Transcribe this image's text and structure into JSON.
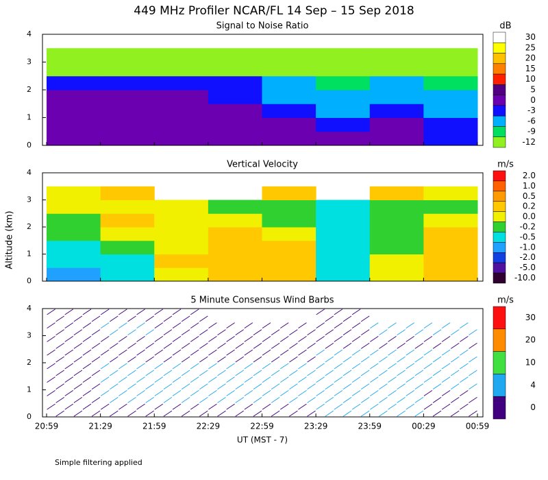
{
  "title": "449 MHz Profiler NCAR/FL 14 Sep – 15 Sep 2018",
  "y_label": "Altitude (km)",
  "note": "Simple filtering applied",
  "x_axis": {
    "label": "UT  (MST - 7)",
    "ticks": [
      "20:59",
      "21:29",
      "21:59",
      "22:29",
      "22:59",
      "23:29",
      "23:59",
      "00:29",
      "00:59"
    ]
  },
  "chart_data": [
    {
      "type": "heatmap",
      "title": "Signal to Noise Ratio",
      "ylim": [
        0,
        4
      ],
      "yticks": [
        0,
        1,
        2,
        3,
        4
      ],
      "y": [
        0.25,
        0.75,
        1.25,
        1.75,
        2.25,
        2.75,
        3.25,
        3.75
      ],
      "z": [
        [
          3,
          3,
          3,
          3,
          1,
          1,
          0,
          -1
        ],
        [
          2,
          2,
          2,
          2,
          0,
          -1,
          0,
          -2
        ],
        [
          2,
          2,
          2,
          1,
          -1,
          -4,
          -2,
          -4
        ],
        [
          1,
          1,
          0,
          -1,
          -4,
          -6,
          -4,
          -5
        ],
        [
          -2,
          -2,
          -3,
          -3,
          -5,
          -7,
          -6,
          -7
        ],
        [
          -10,
          -10,
          -10,
          -10,
          -11,
          -11,
          -11,
          -12
        ],
        [
          -11,
          -11,
          -11,
          -11,
          -11,
          -11,
          -11,
          -11
        ],
        [
          null,
          null,
          null,
          null,
          null,
          null,
          null,
          null
        ]
      ],
      "colorbar": {
        "unit": "dB",
        "levels": [
          30,
          25,
          20,
          15,
          10,
          5,
          0,
          -3,
          -6,
          -9,
          -12
        ],
        "colors": [
          "#ffffff",
          "#ffff00",
          "#ffc000",
          "#ff8000",
          "#ff2000",
          "#500080",
          "#6a00b0",
          "#1010ff",
          "#00b0ff",
          "#00e060",
          "#90f020"
        ]
      }
    },
    {
      "type": "heatmap",
      "title": "Vertical Velocity",
      "ylim": [
        0,
        4
      ],
      "yticks": [
        0,
        1,
        2,
        3,
        4
      ],
      "y": [
        0.25,
        0.75,
        1.25,
        1.75,
        2.25,
        2.75,
        3.25,
        3.75
      ],
      "z": [
        [
          -1,
          -0.5,
          0.1,
          0.3,
          0.2,
          -0.3,
          0.1,
          0.2
        ],
        [
          -0.5,
          -0.3,
          0.2,
          0.3,
          0.2,
          -0.4,
          0.1,
          0.3
        ],
        [
          -0.3,
          -0.2,
          0.1,
          0.3,
          0.2,
          -0.4,
          -0.1,
          0.2
        ],
        [
          -0.2,
          0.1,
          0.1,
          0.2,
          0.1,
          -0.3,
          -0.1,
          0.2
        ],
        [
          -0.2,
          0.2,
          0.1,
          0.1,
          -0.1,
          -0.3,
          -0.2,
          0.1
        ],
        [
          0,
          0.1,
          0.1,
          -0.1,
          -0.2,
          -0.3,
          -0.2,
          -0.1
        ],
        [
          0.1,
          0.2,
          null,
          null,
          0.2,
          null,
          0.2,
          0.1
        ],
        [
          null,
          null,
          null,
          null,
          null,
          null,
          null,
          null
        ]
      ],
      "colorbar": {
        "unit": "m/s",
        "levels": [
          {
            "value": 2,
            "label": "2.0"
          },
          {
            "value": 1,
            "label": "1.0"
          },
          0.5,
          0.2,
          {
            "value": 0,
            "label": "0.0"
          },
          -0.2,
          -0.5,
          {
            "value": -1,
            "label": "-1.0"
          },
          {
            "value": -2,
            "label": "-2.0"
          },
          {
            "value": -5,
            "label": "-5.0"
          },
          {
            "value": -10,
            "label": "-10.0"
          }
        ],
        "colors": [
          "#ff1010",
          "#ff6000",
          "#ff9a00",
          "#ffc800",
          "#f0f000",
          "#30d030",
          "#00e0e0",
          "#20a0ff",
          "#1040e0",
          "#5010a0",
          "#300030"
        ]
      }
    },
    {
      "type": "barbs",
      "title": "5 Minute Consensus Wind Barbs",
      "ylim": [
        0,
        4
      ],
      "yticks": [
        0,
        1,
        2,
        3,
        4
      ],
      "y": [
        0.25,
        0.75,
        1.25,
        1.75,
        2.25,
        2.75,
        3.25,
        3.75
      ],
      "z": [
        [
          3,
          2,
          3,
          3,
          3,
          4,
          5,
          3
        ],
        [
          3,
          4,
          5,
          6,
          6,
          6,
          6,
          3
        ],
        [
          3,
          5,
          5,
          6,
          6,
          6,
          7,
          5
        ],
        [
          3,
          4,
          5,
          6,
          5,
          6,
          7,
          6
        ],
        [
          2,
          3,
          3,
          3,
          3,
          4,
          4,
          4
        ],
        [
          2,
          2,
          2,
          2,
          3,
          3,
          3,
          3
        ],
        [
          3,
          4,
          3,
          3,
          3,
          3,
          4,
          8
        ],
        [
          3,
          3,
          3,
          null,
          null,
          2,
          null,
          null
        ]
      ],
      "colorbar": {
        "unit": "m/s",
        "levels": [
          30,
          20,
          10,
          4,
          0
        ],
        "colors": [
          "#ff1010",
          "#ff8c00",
          "#40e040",
          "#20a8f0",
          "#400080"
        ]
      }
    }
  ]
}
